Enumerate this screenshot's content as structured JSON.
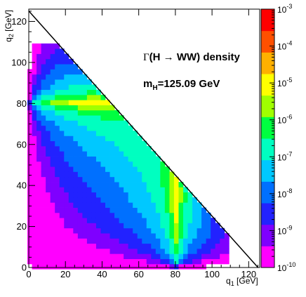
{
  "chart_data": {
    "type": "heatmap",
    "title": "Γ(H → WW) density",
    "annotations": {
      "gamma_symbol": "Γ",
      "process": "(H → WW) density",
      "mass_prefix": "m",
      "mass_subscript": "H",
      "mass_value": "=125.09 GeV"
    },
    "xlabel": {
      "base": "q",
      "sub": "1",
      "unit": " [GeV]"
    },
    "ylabel": {
      "base": "q",
      "sub": "2",
      "unit": " [GeV]"
    },
    "xlim": [
      0,
      126
    ],
    "ylim": [
      0,
      126
    ],
    "x_ticks": [
      "0",
      "20",
      "40",
      "60",
      "80",
      "100",
      "120"
    ],
    "y_ticks": [
      "0",
      "20",
      "40",
      "60",
      "80",
      "100",
      "120"
    ],
    "colorbar": {
      "scale": "log",
      "range": [
        1e-10,
        0.001
      ],
      "tick_labels": [
        {
          "base": "10",
          "exp": "-10"
        },
        {
          "base": "10",
          "exp": "-9"
        },
        {
          "base": "10",
          "exp": "-8"
        },
        {
          "base": "10",
          "exp": "-7"
        },
        {
          "base": "10",
          "exp": "-6"
        },
        {
          "base": "10",
          "exp": "-5"
        },
        {
          "base": "10",
          "exp": "-4"
        },
        {
          "base": "10",
          "exp": "-3"
        }
      ],
      "colors": [
        "#ff00ff",
        "#7f00ff",
        "#2222ff",
        "#0070ff",
        "#00c8ff",
        "#00ffc0",
        "#00ff40",
        "#a0ff00",
        "#ffff00",
        "#ffb000",
        "#ff5000",
        "#ff0000"
      ]
    },
    "kinematic_boundary": "q1 + q2 = 125.09",
    "peak_resonance_GeV": 80.4,
    "grid": false
  }
}
